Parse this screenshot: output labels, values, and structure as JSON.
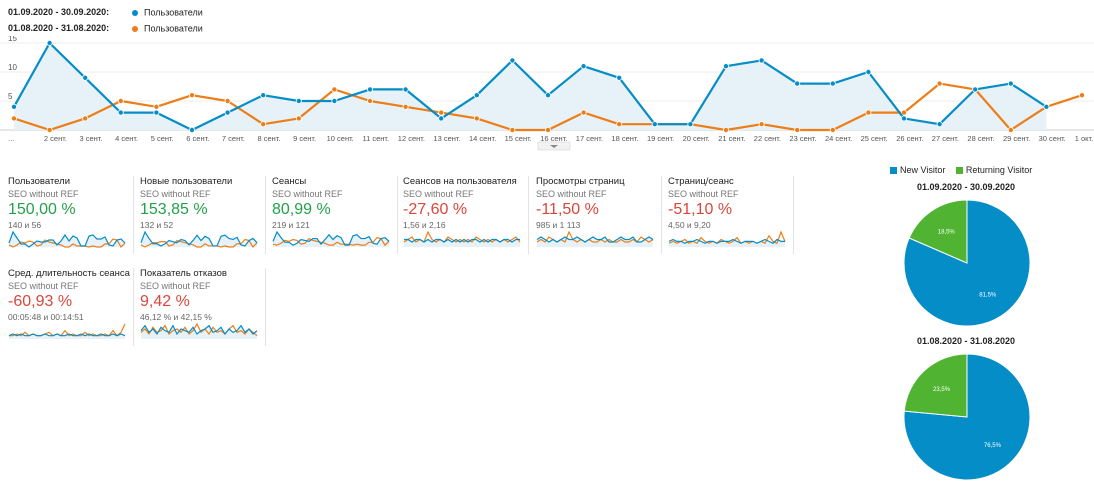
{
  "legend": [
    {
      "range": "01.09.2020 - 30.09.2020:",
      "series": "Пользователи",
      "color": "#058dc7"
    },
    {
      "range": "01.08.2020 - 31.08.2020:",
      "series": "Пользователи",
      "color": "#ed7e17"
    }
  ],
  "chart_data": [
    {
      "type": "line",
      "y_ticks": [
        "15",
        "10",
        "5"
      ],
      "ylim": [
        0,
        16
      ],
      "x_labels": [
        "...",
        "2 сент.",
        "3 сент.",
        "4 сент.",
        "5 сент.",
        "6 сент.",
        "7 сент.",
        "8 сент.",
        "9 сент.",
        "10 сент.",
        "11 сент.",
        "12 сент.",
        "13 сент.",
        "14 сент.",
        "15 сент.",
        "16 сент.",
        "17 сент.",
        "18 сент.",
        "19 сент.",
        "20 сент.",
        "21 сент.",
        "22 сент.",
        "23 сент.",
        "24 сент.",
        "25 сент.",
        "26 сент.",
        "27 сент.",
        "28 сент.",
        "29 сент.",
        "30 сент.",
        "1 окт."
      ],
      "series": [
        {
          "name": "Пользователи",
          "color": "#058dc7",
          "values": [
            4,
            15,
            9,
            3,
            3,
            0,
            3,
            6,
            5,
            5,
            7,
            7,
            2,
            6,
            12,
            6,
            11,
            9,
            1,
            1,
            11,
            12,
            8,
            8,
            10,
            2,
            1,
            7,
            8,
            4
          ]
        },
        {
          "name": "Пользователи",
          "color": "#ed7e17",
          "values": [
            2,
            0,
            2,
            5,
            4,
            6,
            5,
            1,
            2,
            7,
            5,
            4,
            3,
            2,
            0,
            0,
            3,
            1,
            1,
            1,
            0,
            1,
            0,
            0,
            3,
            3,
            8,
            7,
            0,
            4,
            6
          ]
        }
      ]
    },
    {
      "type": "pie",
      "title": "01.09.2020 - 30.09.2020",
      "labels": [
        "New Visitor",
        "Returning Visitor"
      ],
      "values": [
        81.5,
        18.5
      ],
      "value_labels": [
        "81,5%",
        "18,5%"
      ],
      "colors": [
        "#058dc7",
        "#50b432"
      ]
    },
    {
      "type": "pie",
      "title": "01.08.2020 - 31.08.2020",
      "labels": [
        "New Visitor",
        "Returning Visitor"
      ],
      "values": [
        76.5,
        23.5
      ],
      "value_labels": [
        "76,5%",
        "23,5%"
      ],
      "colors": [
        "#058dc7",
        "#50b432"
      ]
    }
  ],
  "metrics": [
    {
      "title": "Пользователи",
      "segment": "SEO without REF",
      "value": "150,00 %",
      "trend": "pos",
      "compare": "140 и 56",
      "spark_a": [
        4,
        15,
        9,
        3,
        3,
        0,
        3,
        6,
        5,
        5,
        7,
        7,
        2,
        6,
        12,
        6,
        11,
        9,
        1,
        1,
        11,
        12,
        8,
        8,
        10,
        2,
        1,
        7,
        8,
        4
      ],
      "spark_b": [
        2,
        0,
        2,
        5,
        4,
        6,
        5,
        1,
        2,
        7,
        5,
        4,
        3,
        2,
        0,
        0,
        3,
        1,
        1,
        1,
        0,
        1,
        0,
        0,
        3,
        3,
        8,
        7,
        0,
        4
      ]
    },
    {
      "title": "Новые пользователи",
      "segment": "SEO without REF",
      "value": "153,85 %",
      "trend": "pos",
      "compare": "132 и 52",
      "spark_a": [
        4,
        14,
        8,
        3,
        3,
        1,
        3,
        6,
        5,
        4,
        7,
        6,
        2,
        6,
        11,
        6,
        10,
        8,
        1,
        1,
        10,
        11,
        8,
        7,
        9,
        2,
        1,
        6,
        8,
        4
      ],
      "spark_b": [
        2,
        0,
        2,
        4,
        4,
        5,
        5,
        1,
        2,
        6,
        5,
        4,
        3,
        2,
        0,
        0,
        3,
        1,
        1,
        1,
        0,
        1,
        0,
        0,
        3,
        3,
        7,
        6,
        0,
        4
      ]
    },
    {
      "title": "Сеансы",
      "segment": "SEO without REF",
      "value": "80,99 %",
      "trend": "pos",
      "compare": "219 и 121",
      "spark_a": [
        6,
        16,
        10,
        5,
        5,
        2,
        4,
        8,
        7,
        6,
        9,
        9,
        3,
        8,
        13,
        8,
        12,
        10,
        2,
        2,
        12,
        13,
        9,
        9,
        11,
        4,
        3,
        9,
        10,
        6
      ],
      "spark_b": [
        3,
        2,
        4,
        7,
        6,
        8,
        7,
        3,
        4,
        9,
        7,
        6,
        5,
        4,
        2,
        2,
        5,
        3,
        3,
        3,
        2,
        3,
        2,
        2,
        5,
        5,
        10,
        9,
        2,
        6
      ]
    },
    {
      "title": "Сеансов на пользователя",
      "segment": "SEO without REF",
      "value": "-27,60 %",
      "trend": "neg",
      "compare": "1,56 и 2,16",
      "spark_a": [
        3,
        3,
        2,
        3,
        3,
        2,
        3,
        2,
        3,
        3,
        2,
        3,
        2,
        3,
        2,
        3,
        2,
        3,
        3,
        2,
        3,
        2,
        3,
        3,
        2,
        3,
        3,
        2,
        3,
        3
      ],
      "spark_b": [
        2,
        3,
        4,
        2,
        3,
        2,
        6,
        3,
        2,
        3,
        2,
        4,
        3,
        2,
        3,
        2,
        3,
        2,
        4,
        3,
        2,
        3,
        2,
        3,
        2,
        3,
        2,
        3,
        4,
        2
      ]
    },
    {
      "title": "Просмотры страниц",
      "segment": "SEO without REF",
      "value": "-11,50 %",
      "trend": "neg",
      "compare": "985 и 1 113",
      "spark_a": [
        3,
        4,
        3,
        2,
        3,
        2,
        3,
        4,
        3,
        3,
        4,
        3,
        2,
        3,
        4,
        3,
        3,
        4,
        2,
        2,
        3,
        4,
        3,
        3,
        4,
        2,
        2,
        3,
        4,
        3
      ],
      "spark_b": [
        2,
        3,
        2,
        4,
        3,
        2,
        3,
        2,
        6,
        3,
        2,
        3,
        2,
        3,
        2,
        2,
        3,
        2,
        3,
        2,
        2,
        3,
        2,
        2,
        3,
        2,
        4,
        3,
        2,
        3
      ]
    },
    {
      "title": "Страниц/сеанс",
      "segment": "SEO without REF",
      "value": "-51,10 %",
      "trend": "neg",
      "compare": "4,50 и 9,20",
      "spark_a": [
        3,
        4,
        3,
        3,
        2,
        3,
        3,
        4,
        3,
        2,
        3,
        3,
        2,
        3,
        3,
        3,
        4,
        3,
        2,
        3,
        3,
        3,
        2,
        3,
        4,
        3,
        2,
        4,
        3,
        3
      ],
      "spark_b": [
        2,
        3,
        2,
        3,
        4,
        2,
        3,
        2,
        5,
        3,
        2,
        3,
        2,
        4,
        3,
        2,
        3,
        5,
        2,
        3,
        2,
        3,
        2,
        3,
        2,
        6,
        3,
        2,
        8,
        3
      ]
    },
    {
      "title": "Сред. длительность сеанса",
      "segment": "SEO without REF",
      "value": "-60,93 %",
      "trend": "neg",
      "compare": "00:05:48 и 00:14:51",
      "spark_a": [
        2,
        3,
        2,
        3,
        2,
        2,
        3,
        2,
        2,
        3,
        2,
        2,
        3,
        2,
        2,
        3,
        2,
        2,
        3,
        2,
        3,
        2,
        2,
        3,
        2,
        2,
        3,
        2,
        3,
        2
      ],
      "spark_b": [
        2,
        2,
        3,
        2,
        4,
        2,
        3,
        2,
        2,
        3,
        4,
        2,
        3,
        2,
        5,
        2,
        3,
        2,
        2,
        4,
        2,
        3,
        2,
        2,
        3,
        2,
        5,
        2,
        4,
        9
      ]
    },
    {
      "title": "Показатель отказов",
      "segment": "SEO without REF",
      "value": "9,42 %",
      "trend": "neg",
      "compare": "46,12 % и 42,15 %",
      "spark_a": [
        5,
        8,
        4,
        6,
        3,
        7,
        5,
        4,
        8,
        3,
        6,
        5,
        4,
        7,
        3,
        5,
        6,
        8,
        4,
        5,
        7,
        3,
        6,
        4,
        5,
        8,
        4,
        6,
        3,
        5
      ],
      "spark_b": [
        4,
        6,
        3,
        7,
        4,
        5,
        8,
        3,
        5,
        6,
        4,
        7,
        3,
        5,
        9,
        4,
        6,
        3,
        7,
        4,
        5,
        3,
        6,
        8,
        4,
        5,
        3,
        6,
        4,
        2
      ]
    }
  ]
}
